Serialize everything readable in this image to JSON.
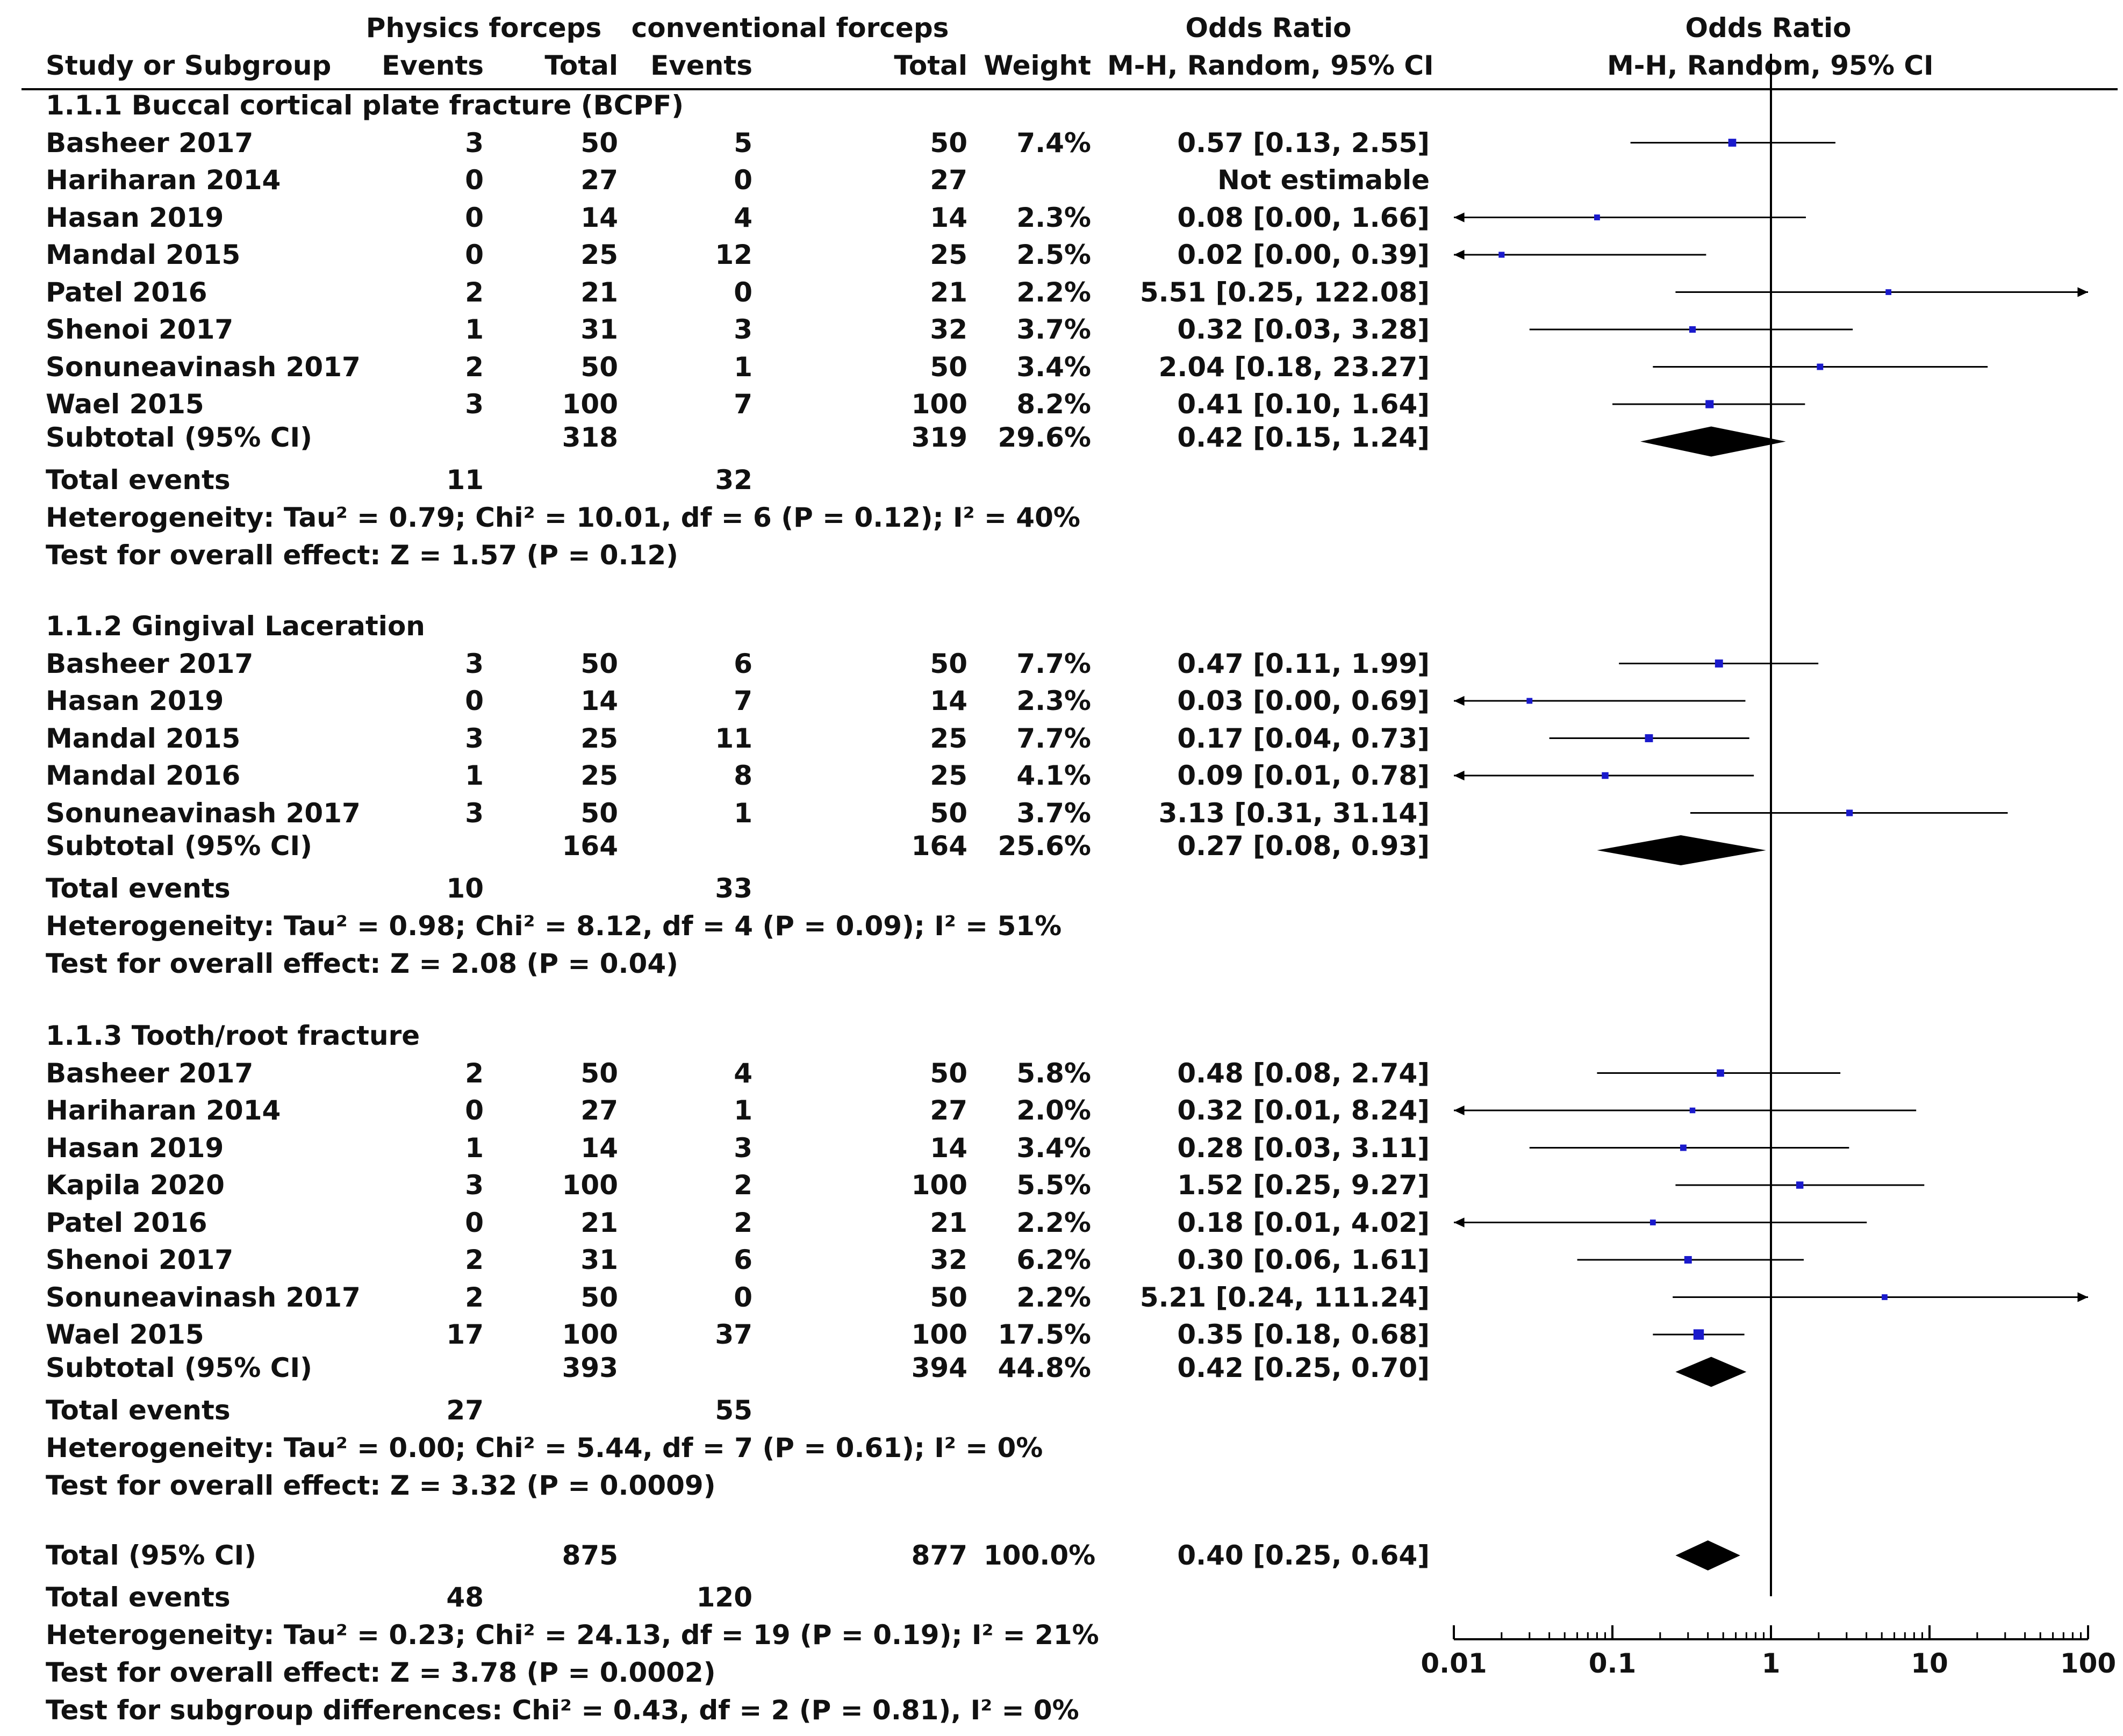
{
  "header": {
    "group1": "Physics forceps",
    "group2": "conventional forceps",
    "or_title": "Odds Ratio",
    "plot_title": "Odds Ratio",
    "col_study": "Study or Subgroup",
    "col_events1": "Events",
    "col_total1": "Total",
    "col_events2": "Events",
    "col_total2": "Total",
    "col_weight": "Weight",
    "col_method": "M-H, Random, 95% CI",
    "plot_method": "M-H, Random, 95% CI"
  },
  "subgroups": [
    {
      "title": "1.1.1 Buccal cortical plate fracture (BCPF)",
      "studies": [
        {
          "name": "Basheer 2017",
          "e1": "3",
          "t1": "50",
          "e2": "5",
          "t2": "50",
          "weight": "7.4%",
          "ci": "0.57 [0.13, 2.55]"
        },
        {
          "name": "Hariharan 2014",
          "e1": "0",
          "t1": "27",
          "e2": "0",
          "t2": "27",
          "weight": "",
          "ci": "Not estimable"
        },
        {
          "name": "Hasan 2019",
          "e1": "0",
          "t1": "14",
          "e2": "4",
          "t2": "14",
          "weight": "2.3%",
          "ci": "0.08 [0.00, 1.66]"
        },
        {
          "name": "Mandal 2015",
          "e1": "0",
          "t1": "25",
          "e2": "12",
          "t2": "25",
          "weight": "2.5%",
          "ci": "0.02 [0.00, 0.39]"
        },
        {
          "name": "Patel 2016",
          "e1": "2",
          "t1": "21",
          "e2": "0",
          "t2": "21",
          "weight": "2.2%",
          "ci": "5.51 [0.25, 122.08]"
        },
        {
          "name": "Shenoi 2017",
          "e1": "1",
          "t1": "31",
          "e2": "3",
          "t2": "32",
          "weight": "3.7%",
          "ci": "0.32 [0.03, 3.28]"
        },
        {
          "name": "Sonuneavinash 2017",
          "e1": "2",
          "t1": "50",
          "e2": "1",
          "t2": "50",
          "weight": "3.4%",
          "ci": "2.04 [0.18, 23.27]"
        },
        {
          "name": "Wael 2015",
          "e1": "3",
          "t1": "100",
          "e2": "7",
          "t2": "100",
          "weight": "8.2%",
          "ci": "0.41 [0.10, 1.64]"
        }
      ],
      "subtotal": {
        "label": "Subtotal (95% CI)",
        "t1": "318",
        "t2": "319",
        "weight": "29.6%",
        "ci": "0.42 [0.15, 1.24]"
      },
      "total_events": {
        "label": "Total events",
        "e1": "11",
        "e2": "32"
      },
      "heterogeneity": "Heterogeneity: Tau² = 0.79; Chi² = 10.01, df = 6 (P = 0.12); I² = 40%",
      "overall": "Test for overall effect: Z = 1.57 (P = 0.12)"
    },
    {
      "title": "1.1.2 Gingival Laceration",
      "studies": [
        {
          "name": "Basheer 2017",
          "e1": "3",
          "t1": "50",
          "e2": "6",
          "t2": "50",
          "weight": "7.7%",
          "ci": "0.47 [0.11, 1.99]"
        },
        {
          "name": "Hasan 2019",
          "e1": "0",
          "t1": "14",
          "e2": "7",
          "t2": "14",
          "weight": "2.3%",
          "ci": "0.03 [0.00, 0.69]"
        },
        {
          "name": "Mandal 2015",
          "e1": "3",
          "t1": "25",
          "e2": "11",
          "t2": "25",
          "weight": "7.7%",
          "ci": "0.17 [0.04, 0.73]"
        },
        {
          "name": "Mandal 2016",
          "e1": "1",
          "t1": "25",
          "e2": "8",
          "t2": "25",
          "weight": "4.1%",
          "ci": "0.09 [0.01, 0.78]"
        },
        {
          "name": "Sonuneavinash 2017",
          "e1": "3",
          "t1": "50",
          "e2": "1",
          "t2": "50",
          "weight": "3.7%",
          "ci": "3.13 [0.31, 31.14]"
        }
      ],
      "subtotal": {
        "label": "Subtotal (95% CI)",
        "t1": "164",
        "t2": "164",
        "weight": "25.6%",
        "ci": "0.27 [0.08, 0.93]"
      },
      "total_events": {
        "label": "Total events",
        "e1": "10",
        "e2": "33"
      },
      "heterogeneity": "Heterogeneity: Tau² = 0.98; Chi² = 8.12, df = 4 (P = 0.09); I² = 51%",
      "overall": "Test for overall effect: Z = 2.08 (P = 0.04)"
    },
    {
      "title": "1.1.3 Tooth/root fracture",
      "studies": [
        {
          "name": "Basheer 2017",
          "e1": "2",
          "t1": "50",
          "e2": "4",
          "t2": "50",
          "weight": "5.8%",
          "ci": "0.48 [0.08, 2.74]"
        },
        {
          "name": "Hariharan 2014",
          "e1": "0",
          "t1": "27",
          "e2": "1",
          "t2": "27",
          "weight": "2.0%",
          "ci": "0.32 [0.01, 8.24]"
        },
        {
          "name": "Hasan 2019",
          "e1": "1",
          "t1": "14",
          "e2": "3",
          "t2": "14",
          "weight": "3.4%",
          "ci": "0.28 [0.03, 3.11]"
        },
        {
          "name": "Kapila 2020",
          "e1": "3",
          "t1": "100",
          "e2": "2",
          "t2": "100",
          "weight": "5.5%",
          "ci": "1.52 [0.25, 9.27]"
        },
        {
          "name": "Patel 2016",
          "e1": "0",
          "t1": "21",
          "e2": "2",
          "t2": "21",
          "weight": "2.2%",
          "ci": "0.18 [0.01, 4.02]"
        },
        {
          "name": "Shenoi 2017",
          "e1": "2",
          "t1": "31",
          "e2": "6",
          "t2": "32",
          "weight": "6.2%",
          "ci": "0.30 [0.06, 1.61]"
        },
        {
          "name": "Sonuneavinash 2017",
          "e1": "2",
          "t1": "50",
          "e2": "0",
          "t2": "50",
          "weight": "2.2%",
          "ci": "5.21 [0.24, 111.24]"
        },
        {
          "name": "Wael 2015",
          "e1": "17",
          "t1": "100",
          "e2": "37",
          "t2": "100",
          "weight": "17.5%",
          "ci": "0.35 [0.18, 0.68]"
        }
      ],
      "subtotal": {
        "label": "Subtotal (95% CI)",
        "t1": "393",
        "t2": "394",
        "weight": "44.8%",
        "ci": "0.42 [0.25, 0.70]"
      },
      "total_events": {
        "label": "Total events",
        "e1": "27",
        "e2": "55"
      },
      "heterogeneity": "Heterogeneity: Tau² = 0.00; Chi² = 5.44, df = 7 (P = 0.61); I² = 0%",
      "overall": "Test for overall effect: Z = 3.32 (P = 0.0009)"
    }
  ],
  "total": {
    "label": "Total (95% CI)",
    "t1": "875",
    "t2": "877",
    "weight": "100.0%",
    "ci": "0.40 [0.25, 0.64]",
    "events_label": "Total events",
    "e1": "48",
    "e2": "120",
    "heterogeneity": "Heterogeneity: Tau² = 0.23; Chi² = 24.13, df = 19 (P = 0.19); I² = 21%",
    "overall": "Test for overall effect: Z = 3.78 (P = 0.0002)",
    "subgroup_diff": "Test for subgroup differences: Chi² = 0.43, df = 2 (P = 0.81), I² = 0%"
  },
  "axis": {
    "ticks": [
      "0.01",
      "0.1",
      "1",
      "10",
      "100"
    ]
  },
  "colors": {
    "point": "#1a1acc",
    "line": "#000000",
    "diamond": "#000000"
  },
  "chart_data": {
    "type": "forest",
    "title": "Odds Ratio",
    "subtitle": "M-H, Random, 95% CI",
    "x_scale": "log",
    "xlim": [
      0.01,
      100
    ],
    "ticks": [
      0.01,
      0.1,
      1,
      10,
      100
    ],
    "null_line": 1,
    "subgroups": [
      {
        "name": "1.1.1 Buccal cortical plate fracture (BCPF)",
        "studies": [
          {
            "name": "Basheer 2017",
            "or": 0.57,
            "lo": 0.13,
            "hi": 2.55,
            "weight": 7.4
          },
          {
            "name": "Hariharan 2014",
            "or": null,
            "lo": null,
            "hi": null,
            "weight": null
          },
          {
            "name": "Hasan 2019",
            "or": 0.08,
            "lo": 0.0,
            "hi": 1.66,
            "weight": 2.3
          },
          {
            "name": "Mandal 2015",
            "or": 0.02,
            "lo": 0.0,
            "hi": 0.39,
            "weight": 2.5
          },
          {
            "name": "Patel 2016",
            "or": 5.51,
            "lo": 0.25,
            "hi": 122.08,
            "weight": 2.2
          },
          {
            "name": "Shenoi 2017",
            "or": 0.32,
            "lo": 0.03,
            "hi": 3.28,
            "weight": 3.7
          },
          {
            "name": "Sonuneavinash 2017",
            "or": 2.04,
            "lo": 0.18,
            "hi": 23.27,
            "weight": 3.4
          },
          {
            "name": "Wael 2015",
            "or": 0.41,
            "lo": 0.1,
            "hi": 1.64,
            "weight": 8.2
          }
        ],
        "subtotal": {
          "or": 0.42,
          "lo": 0.15,
          "hi": 1.24,
          "weight": 29.6
        }
      },
      {
        "name": "1.1.2 Gingival Laceration",
        "studies": [
          {
            "name": "Basheer 2017",
            "or": 0.47,
            "lo": 0.11,
            "hi": 1.99,
            "weight": 7.7
          },
          {
            "name": "Hasan 2019",
            "or": 0.03,
            "lo": 0.0,
            "hi": 0.69,
            "weight": 2.3
          },
          {
            "name": "Mandal 2015",
            "or": 0.17,
            "lo": 0.04,
            "hi": 0.73,
            "weight": 7.7
          },
          {
            "name": "Mandal 2016",
            "or": 0.09,
            "lo": 0.01,
            "hi": 0.78,
            "weight": 4.1
          },
          {
            "name": "Sonuneavinash 2017",
            "or": 3.13,
            "lo": 0.31,
            "hi": 31.14,
            "weight": 3.7
          }
        ],
        "subtotal": {
          "or": 0.27,
          "lo": 0.08,
          "hi": 0.93,
          "weight": 25.6
        }
      },
      {
        "name": "1.1.3 Tooth/root fracture",
        "studies": [
          {
            "name": "Basheer 2017",
            "or": 0.48,
            "lo": 0.08,
            "hi": 2.74,
            "weight": 5.8
          },
          {
            "name": "Hariharan 2014",
            "or": 0.32,
            "lo": 0.01,
            "hi": 8.24,
            "weight": 2.0
          },
          {
            "name": "Hasan 2019",
            "or": 0.28,
            "lo": 0.03,
            "hi": 3.11,
            "weight": 3.4
          },
          {
            "name": "Kapila 2020",
            "or": 1.52,
            "lo": 0.25,
            "hi": 9.27,
            "weight": 5.5
          },
          {
            "name": "Patel 2016",
            "or": 0.18,
            "lo": 0.01,
            "hi": 4.02,
            "weight": 2.2
          },
          {
            "name": "Shenoi 2017",
            "or": 0.3,
            "lo": 0.06,
            "hi": 1.61,
            "weight": 6.2
          },
          {
            "name": "Sonuneavinash 2017",
            "or": 5.21,
            "lo": 0.24,
            "hi": 111.24,
            "weight": 2.2
          },
          {
            "name": "Wael 2015",
            "or": 0.35,
            "lo": 0.18,
            "hi": 0.68,
            "weight": 17.5
          }
        ],
        "subtotal": {
          "or": 0.42,
          "lo": 0.25,
          "hi": 0.7,
          "weight": 44.8
        }
      }
    ],
    "overall": {
      "or": 0.4,
      "lo": 0.25,
      "hi": 0.64,
      "weight": 100.0
    }
  }
}
